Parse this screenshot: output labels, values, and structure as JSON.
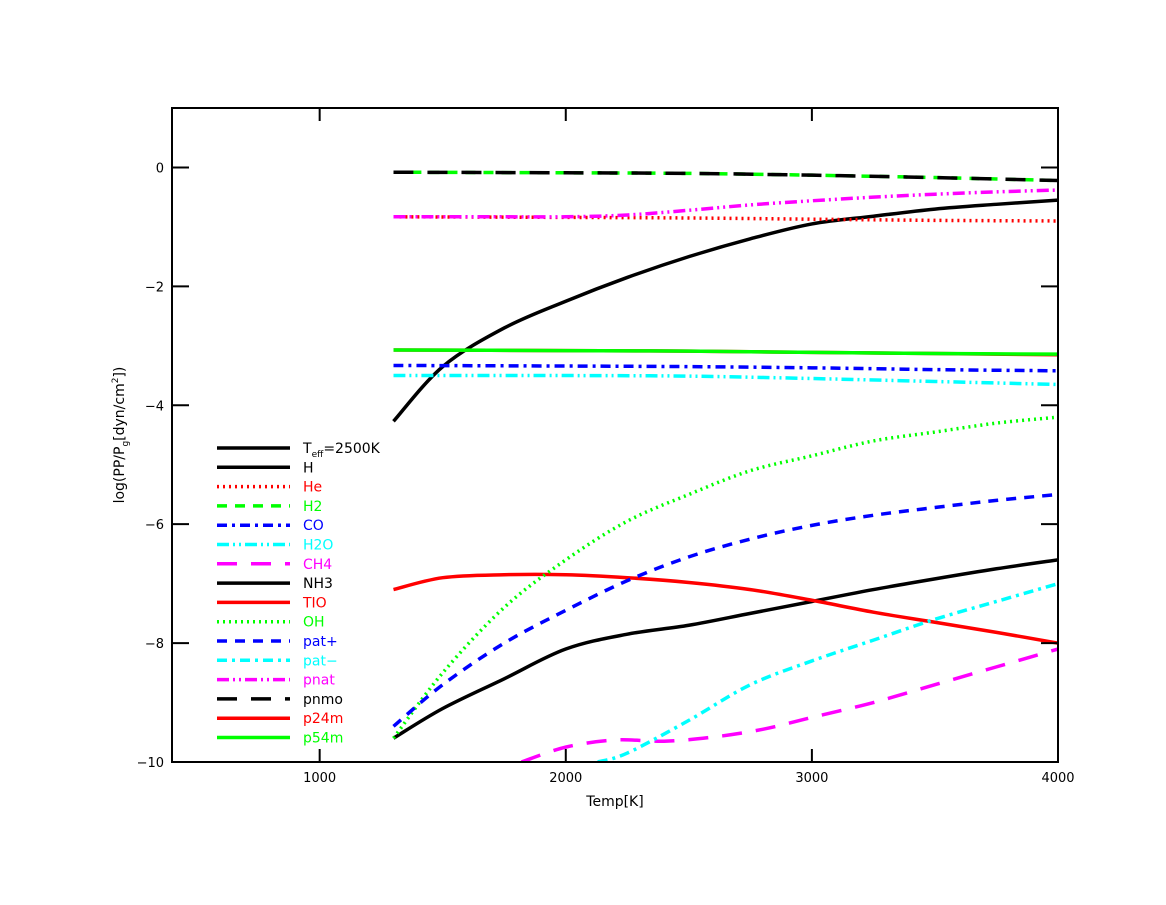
{
  "chart_data": {
    "type": "line",
    "title": "",
    "xlabel": "Temp[K]",
    "ylabel_parts": {
      "main": "log(PP/P",
      "sub": "g",
      "mid": "[dyn/cm",
      "sup": "2",
      "end": "])"
    },
    "xlim": [
      400,
      4000
    ],
    "ylim": [
      -10,
      1
    ],
    "xticks": [
      1000,
      2000,
      3000,
      4000
    ],
    "yticks": [
      0,
      -2,
      -4,
      -6,
      -8,
      -10
    ],
    "xtick_labels": [
      "1000",
      "2000",
      "3000",
      "4000"
    ],
    "ytick_labels": [
      "0",
      "−2",
      "−4",
      "−6",
      "−8",
      "−10"
    ],
    "grid": false,
    "legend_placement": "bottom-left",
    "legend_header": {
      "main": "T",
      "sub": "eff",
      "rest": "=2500K",
      "color": "#000000",
      "style": "solid"
    },
    "series": [
      {
        "name": "H",
        "color": "#000000",
        "style": "solid",
        "x": [
          1300,
          1500,
          1750,
          2000,
          2250,
          2500,
          2750,
          3000,
          3250,
          3500,
          3750,
          4000
        ],
        "y": [
          -4.27,
          -3.35,
          -2.7,
          -2.25,
          -1.85,
          -1.5,
          -1.2,
          -0.95,
          -0.82,
          -0.7,
          -0.62,
          -0.55
        ]
      },
      {
        "name": "He",
        "color": "#ff0000",
        "style": "dotted",
        "x": [
          1300,
          2000,
          2500,
          3000,
          3500,
          4000
        ],
        "y": [
          -0.83,
          -0.84,
          -0.85,
          -0.87,
          -0.89,
          -0.9
        ]
      },
      {
        "name": "H2",
        "color": "#00ff00",
        "style": "dashed",
        "x": [
          1300,
          2000,
          2500,
          3000,
          3500,
          4000
        ],
        "y": [
          -0.08,
          -0.09,
          -0.1,
          -0.13,
          -0.17,
          -0.22
        ]
      },
      {
        "name": "CO",
        "color": "#0000ff",
        "style": "dashdot",
        "x": [
          1300,
          2000,
          2500,
          3000,
          3500,
          4000
        ],
        "y": [
          -3.33,
          -3.34,
          -3.35,
          -3.37,
          -3.4,
          -3.42
        ]
      },
      {
        "name": "H2O",
        "color": "#00ffff",
        "style": "dashdotdot",
        "x": [
          1300,
          2000,
          2500,
          3000,
          3500,
          4000
        ],
        "y": [
          -3.5,
          -3.5,
          -3.51,
          -3.55,
          -3.6,
          -3.65
        ]
      },
      {
        "name": "CH4",
        "color": "#ff00ff",
        "style": "longdash",
        "x": [
          1820,
          2000,
          2200,
          2400,
          2600,
          2800,
          3000,
          3250,
          3500,
          3750,
          4000
        ],
        "y": [
          -10,
          -9.75,
          -9.63,
          -9.65,
          -9.58,
          -9.45,
          -9.25,
          -9.0,
          -8.7,
          -8.4,
          -8.1
        ]
      },
      {
        "name": "NH3",
        "color": "#000000",
        "style": "solid",
        "x": [
          1300,
          1500,
          1750,
          2000,
          2250,
          2500,
          2750,
          3000,
          3250,
          3500,
          3750,
          4000
        ],
        "y": [
          -9.6,
          -9.1,
          -8.6,
          -8.1,
          -7.85,
          -7.7,
          -7.5,
          -7.3,
          -7.1,
          -6.92,
          -6.75,
          -6.6
        ]
      },
      {
        "name": "TIO",
        "color": "#ff0000",
        "style": "solid",
        "x": [
          1300,
          1500,
          1750,
          2000,
          2250,
          2500,
          2750,
          3000,
          3250,
          3500,
          3750,
          4000
        ],
        "y": [
          -7.1,
          -6.9,
          -6.85,
          -6.85,
          -6.9,
          -6.98,
          -7.1,
          -7.28,
          -7.48,
          -7.65,
          -7.82,
          -8.0
        ]
      },
      {
        "name": "OH",
        "color": "#00ff00",
        "style": "dotted",
        "x": [
          1300,
          1500,
          1750,
          2000,
          2250,
          2500,
          2750,
          3000,
          3250,
          3500,
          3750,
          4000
        ],
        "y": [
          -9.6,
          -8.5,
          -7.4,
          -6.6,
          -5.95,
          -5.5,
          -5.1,
          -4.85,
          -4.6,
          -4.45,
          -4.3,
          -4.2
        ]
      },
      {
        "name": "pat+",
        "color": "#0000ff",
        "style": "dashed",
        "x": [
          1300,
          1500,
          1750,
          2000,
          2250,
          2500,
          2750,
          3000,
          3250,
          3500,
          3750,
          4000
        ],
        "y": [
          -9.4,
          -8.7,
          -8.0,
          -7.45,
          -6.95,
          -6.55,
          -6.25,
          -6.02,
          -5.85,
          -5.72,
          -5.6,
          -5.5
        ]
      },
      {
        "name": "pat−",
        "color": "#00ffff",
        "style": "dashdot",
        "x": [
          2130,
          2250,
          2500,
          2750,
          3000,
          3250,
          3500,
          3750,
          4000
        ],
        "y": [
          -10,
          -9.85,
          -9.3,
          -8.7,
          -8.3,
          -7.95,
          -7.6,
          -7.3,
          -7.0
        ]
      },
      {
        "name": "pnat",
        "color": "#ff00ff",
        "style": "dashdotdot",
        "x": [
          1300,
          1750,
          2000,
          2250,
          2500,
          2750,
          3000,
          3250,
          3500,
          3750,
          4000
        ],
        "y": [
          -0.83,
          -0.83,
          -0.83,
          -0.8,
          -0.72,
          -0.63,
          -0.56,
          -0.5,
          -0.45,
          -0.41,
          -0.38
        ]
      },
      {
        "name": "pnmo",
        "color": "#000000",
        "style": "longdash",
        "x": [
          1300,
          2000,
          2500,
          3000,
          3500,
          4000
        ],
        "y": [
          -0.08,
          -0.09,
          -0.1,
          -0.13,
          -0.17,
          -0.22
        ]
      },
      {
        "name": "p24m",
        "color": "#ff0000",
        "style": "solid",
        "x": [
          1300,
          2000,
          2500,
          3000,
          3500,
          4000
        ],
        "y": [
          -3.07,
          -3.08,
          -3.09,
          -3.11,
          -3.13,
          -3.15
        ]
      },
      {
        "name": "p54m",
        "color": "#00ff00",
        "style": "solid",
        "x": [
          1300,
          2000,
          2500,
          3000,
          3500,
          4000
        ],
        "y": [
          -3.07,
          -3.08,
          -3.09,
          -3.11,
          -3.13,
          -3.14
        ]
      }
    ]
  }
}
